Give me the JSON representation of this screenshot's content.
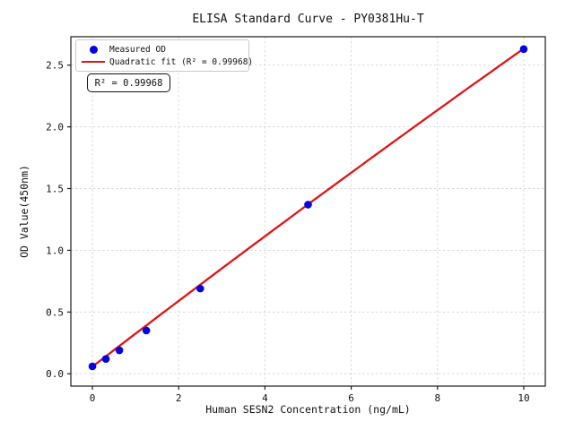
{
  "figure": {
    "background": "#ffffff"
  },
  "chart_data": {
    "type": "scatter",
    "title": "ELISA Standard Curve - PY0381Hu-T",
    "xlabel": "Human SESN2 Concentration (ng/mL)",
    "ylabel": "OD Value(450nm)",
    "xlim": [
      -0.5,
      10.5
    ],
    "ylim": [
      -0.1,
      2.73
    ],
    "x_ticks": [
      0,
      2,
      4,
      6,
      8,
      10
    ],
    "x_tick_labels": [
      "0",
      "2",
      "4",
      "6",
      "8",
      "10"
    ],
    "y_ticks": [
      0.0,
      0.5,
      1.0,
      1.5,
      2.0,
      2.5
    ],
    "y_tick_labels": [
      "0.0",
      "0.5",
      "1.0",
      "1.5",
      "2.0",
      "2.5"
    ],
    "grid": true,
    "grid_style": "dashed",
    "legend_position": "upper left",
    "series": [
      {
        "name": "Measured OD",
        "type": "scatter",
        "color": "#0202e0",
        "x": [
          0,
          0.3125,
          0.625,
          1.25,
          2.5,
          5,
          10
        ],
        "y": [
          0.06,
          0.12,
          0.19,
          0.35,
          0.69,
          1.37,
          2.63
        ]
      },
      {
        "name": "Quadratic fit (R² = 0.99968)",
        "type": "line",
        "color": "#e01414",
        "fit": {
          "a": 0.058,
          "b": 0.2681,
          "c": -0.00105
        },
        "x_range": [
          0,
          10
        ],
        "r_squared": 0.99968
      }
    ],
    "annotation": "R² = 0.99968"
  }
}
